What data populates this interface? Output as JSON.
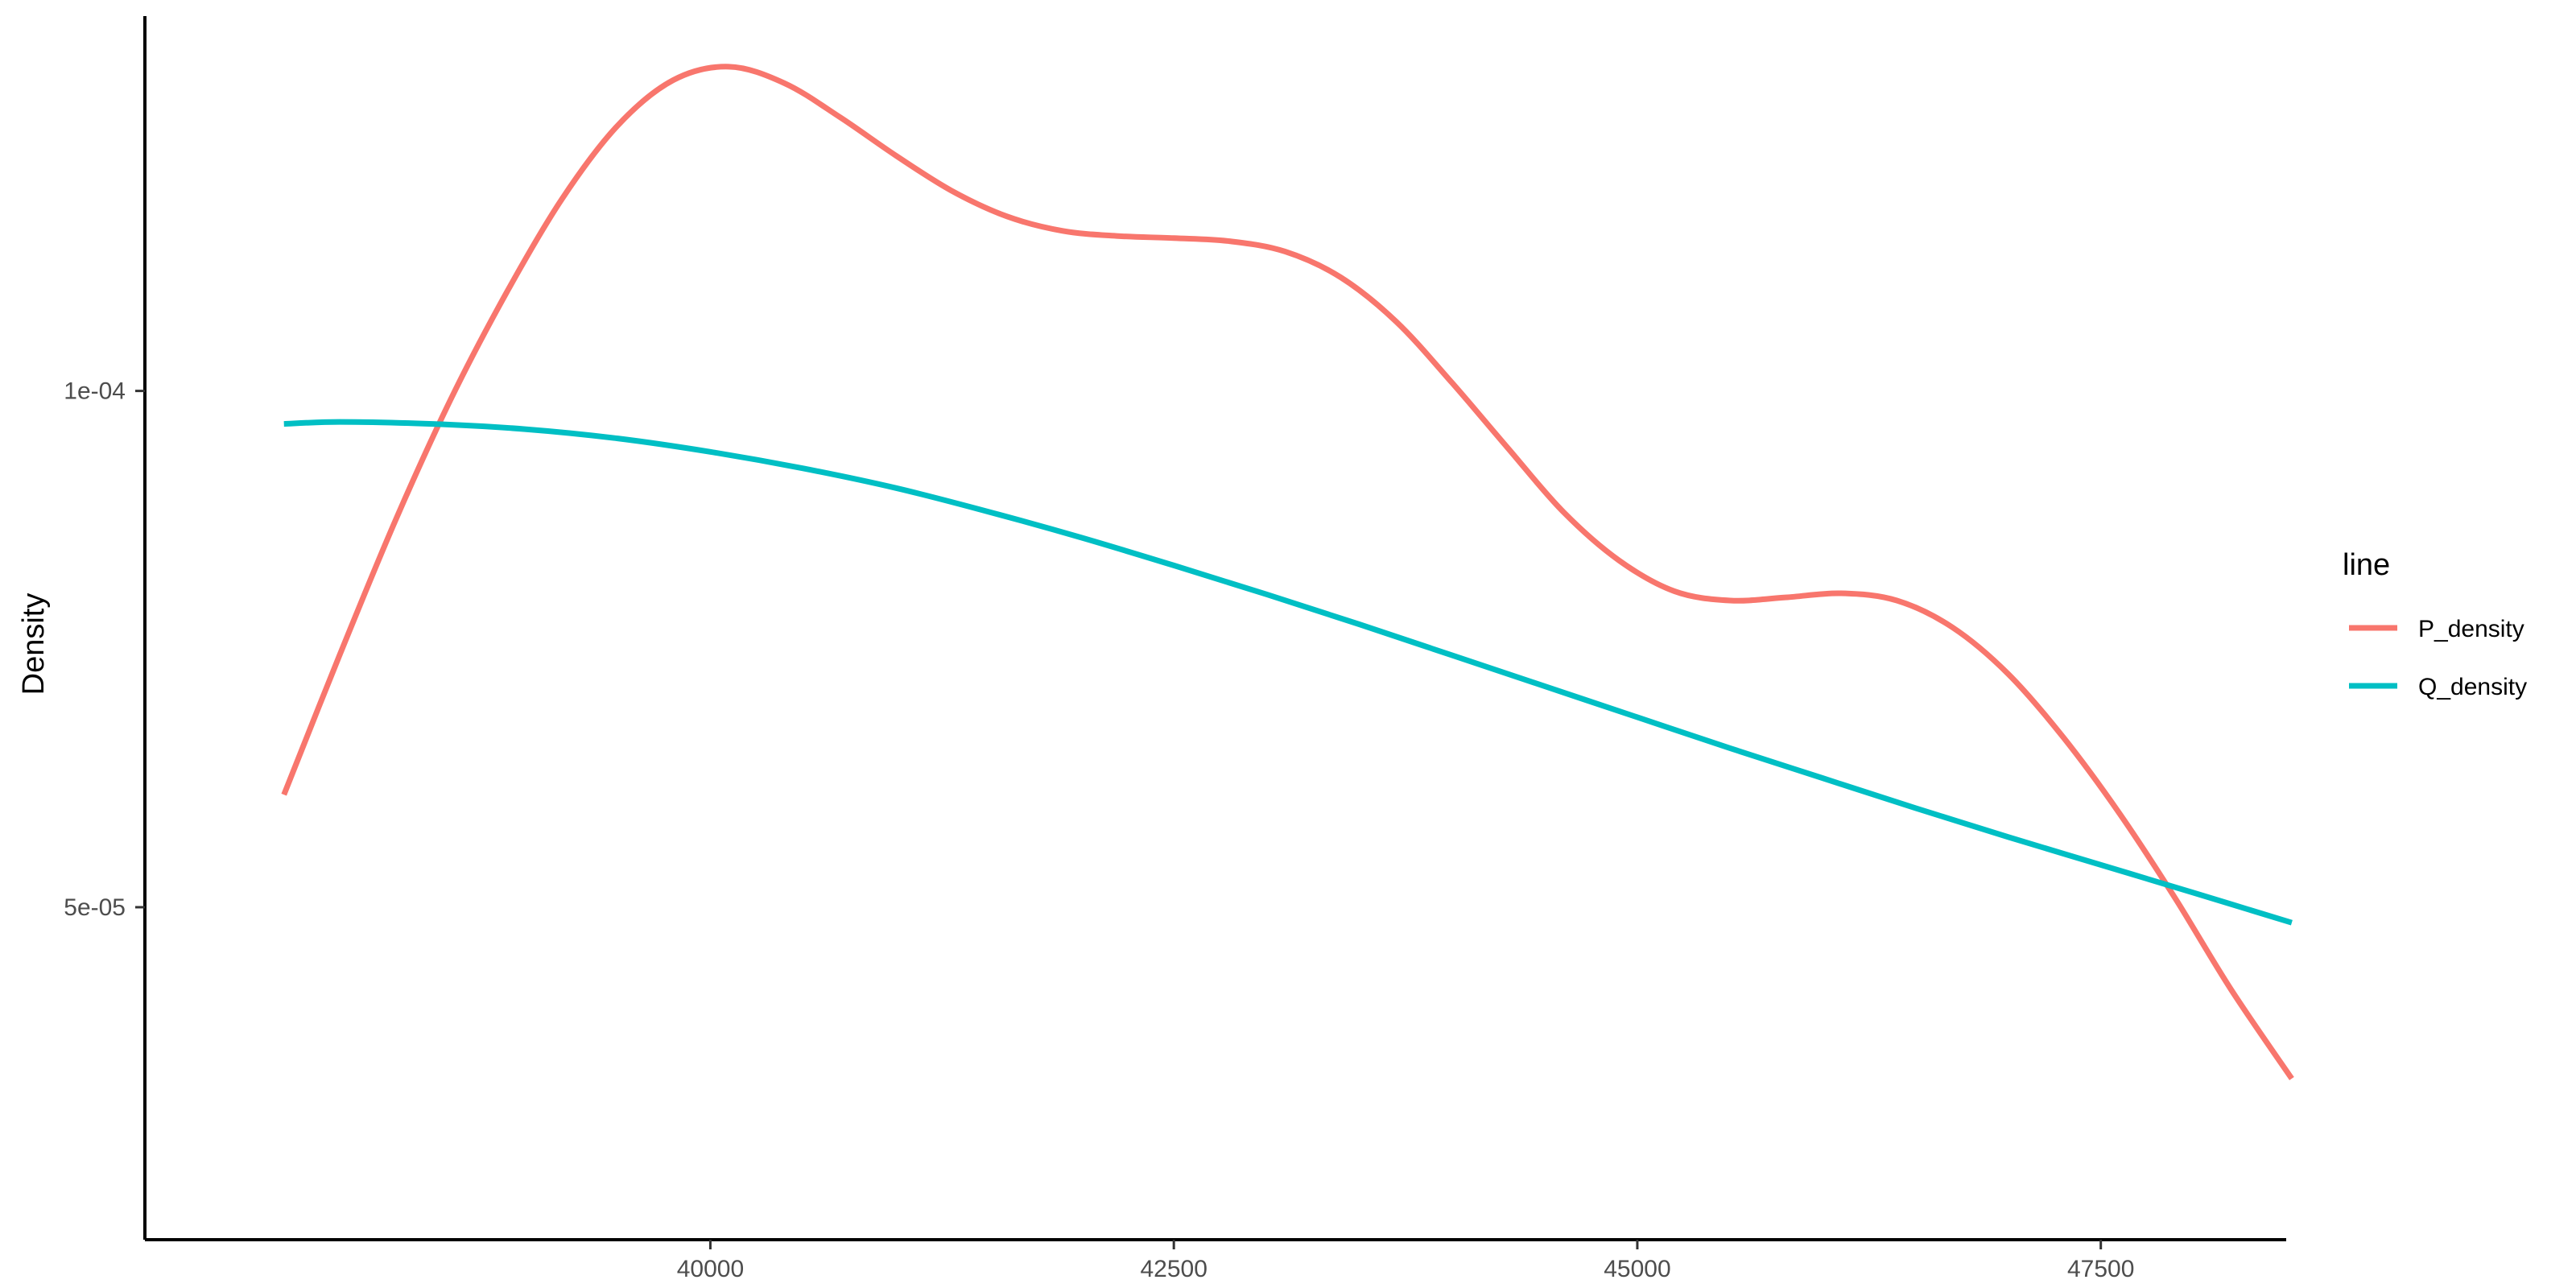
{
  "chart_data": {
    "type": "line",
    "xlabel": "",
    "ylabel": "Density",
    "xlim": [
      36950,
      48500
    ],
    "ylim": [
      1.78e-05,
      0.0001363
    ],
    "x_ticks": [
      40000,
      42500,
      45000,
      47500
    ],
    "x_tick_labels": [
      "40000",
      "42500",
      "45000",
      "47500"
    ],
    "y_ticks": [
      5e-05,
      0.0001
    ],
    "y_tick_labels": [
      "5e-05",
      "1e-04"
    ],
    "grid": false,
    "legend": {
      "title": "line",
      "position": "right"
    },
    "series": [
      {
        "name": "P_density",
        "color": "#F8766D",
        "x": [
          37700,
          38000,
          38300,
          38600,
          38900,
          39200,
          39500,
          39800,
          40100,
          40400,
          40700,
          41000,
          41300,
          41600,
          41900,
          42200,
          42500,
          42800,
          43100,
          43400,
          43700,
          44000,
          44300,
          44600,
          44900,
          45200,
          45500,
          45800,
          46100,
          46400,
          46700,
          47000,
          47300,
          47600,
          47900,
          48200,
          48530
        ],
        "y": [
          6.09e-05,
          7.44e-05,
          8.74e-05,
          9.92e-05,
          0.0001095,
          0.0001186,
          0.0001257,
          0.0001301,
          0.0001314,
          0.0001298,
          0.0001265,
          0.0001228,
          0.0001194,
          0.0001169,
          0.0001155,
          0.000115,
          0.0001148,
          0.0001145,
          0.0001135,
          0.000111,
          0.0001067,
          0.0001008,
          9.45e-05,
          8.83e-05,
          8.36e-05,
          8.06e-05,
          7.97e-05,
          8e-05,
          8.04e-05,
          7.97e-05,
          7.71e-05,
          7.26e-05,
          6.64e-05,
          5.91e-05,
          5.09e-05,
          4.21e-05,
          3.34e-05
        ]
      },
      {
        "name": "Q_density",
        "color": "#00BFC4",
        "x": [
          37700,
          38000,
          38500,
          39000,
          39500,
          40000,
          40500,
          41000,
          41500,
          42000,
          42500,
          43000,
          43500,
          44000,
          44500,
          45000,
          45500,
          46000,
          46500,
          47000,
          47500,
          48000,
          48530
        ],
        "y": [
          9.68e-05,
          9.7e-05,
          9.68e-05,
          9.63e-05,
          9.54e-05,
          9.41e-05,
          9.25e-05,
          9.06e-05,
          8.83e-05,
          8.58e-05,
          8.31e-05,
          8.03e-05,
          7.74e-05,
          7.44e-05,
          7.14e-05,
          6.84e-05,
          6.54e-05,
          6.25e-05,
          5.96e-05,
          5.68e-05,
          5.41e-05,
          5.14e-05,
          4.85e-05
        ]
      }
    ]
  }
}
